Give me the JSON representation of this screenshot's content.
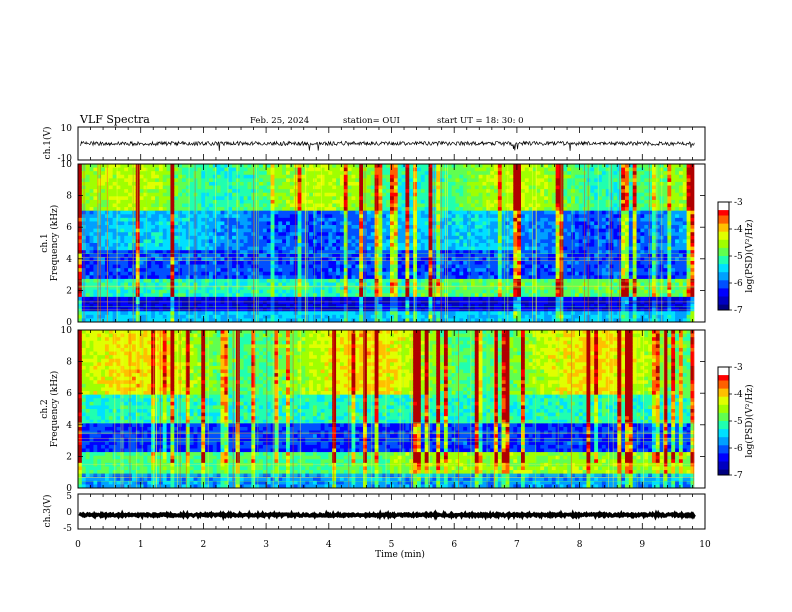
{
  "header": {
    "title": "VLF Spectra",
    "date": "Feb. 25, 2024",
    "station": "station= OUI",
    "start": "start  UT =   18: 30: 0"
  },
  "colors": {
    "colormap": [
      "#00007f",
      "#0000ff",
      "#0080ff",
      "#00e0ff",
      "#40ff80",
      "#a0ff00",
      "#ffff00",
      "#ff8000",
      "#ff0000",
      "#b00000",
      "#ffffff"
    ],
    "waveform": "#000000"
  },
  "chart_data": [
    {
      "type": "line",
      "name": "ch1-waveform",
      "ylabel": "ch.1(V)",
      "ylim": [
        -10,
        10
      ],
      "yticks": [
        "10",
        "-10"
      ],
      "xlim": [
        0,
        10
      ],
      "description_values": {
        "baseline": 0,
        "noise_amplitude": 1.2
      }
    },
    {
      "type": "heatmap",
      "name": "ch1-spectrogram",
      "ylabel": "ch.1 Frequency (kHz)",
      "ylim": [
        0,
        10
      ],
      "yticks": [
        "0",
        "2",
        "4",
        "6",
        "8",
        "10"
      ],
      "xlim": [
        0,
        10
      ],
      "colorbar": {
        "label": "log(PSD)(V²/Hz)",
        "range": [
          -7,
          -3
        ],
        "ticks": [
          "-3",
          "-4",
          "-5",
          "-6",
          "-7"
        ]
      }
    },
    {
      "type": "heatmap",
      "name": "ch2-spectrogram",
      "ylabel": "ch.2 Frequency (kHz)",
      "ylim": [
        0,
        10
      ],
      "yticks": [
        "0",
        "2",
        "4",
        "6",
        "8",
        "10"
      ],
      "xlim": [
        0,
        10
      ],
      "colorbar": {
        "label": "log(PSD)(V²/Hz)",
        "range": [
          -7,
          -3
        ],
        "ticks": [
          "-3",
          "-4",
          "-5",
          "-6",
          "-7"
        ]
      }
    },
    {
      "type": "line",
      "name": "ch3-waveform",
      "ylabel": "ch.3(V)",
      "ylim": [
        -5,
        5
      ],
      "yticks": [
        "5",
        "0",
        "-5"
      ],
      "xlim": [
        0,
        10
      ],
      "description_values": {
        "baseline": -1,
        "noise_amplitude": 0.3
      }
    }
  ],
  "x_axis": {
    "label": "Time  (min)",
    "ticks": [
      "0",
      "1",
      "2",
      "3",
      "4",
      "5",
      "6",
      "7",
      "8",
      "9",
      "10"
    ],
    "range": [
      0,
      10
    ]
  }
}
